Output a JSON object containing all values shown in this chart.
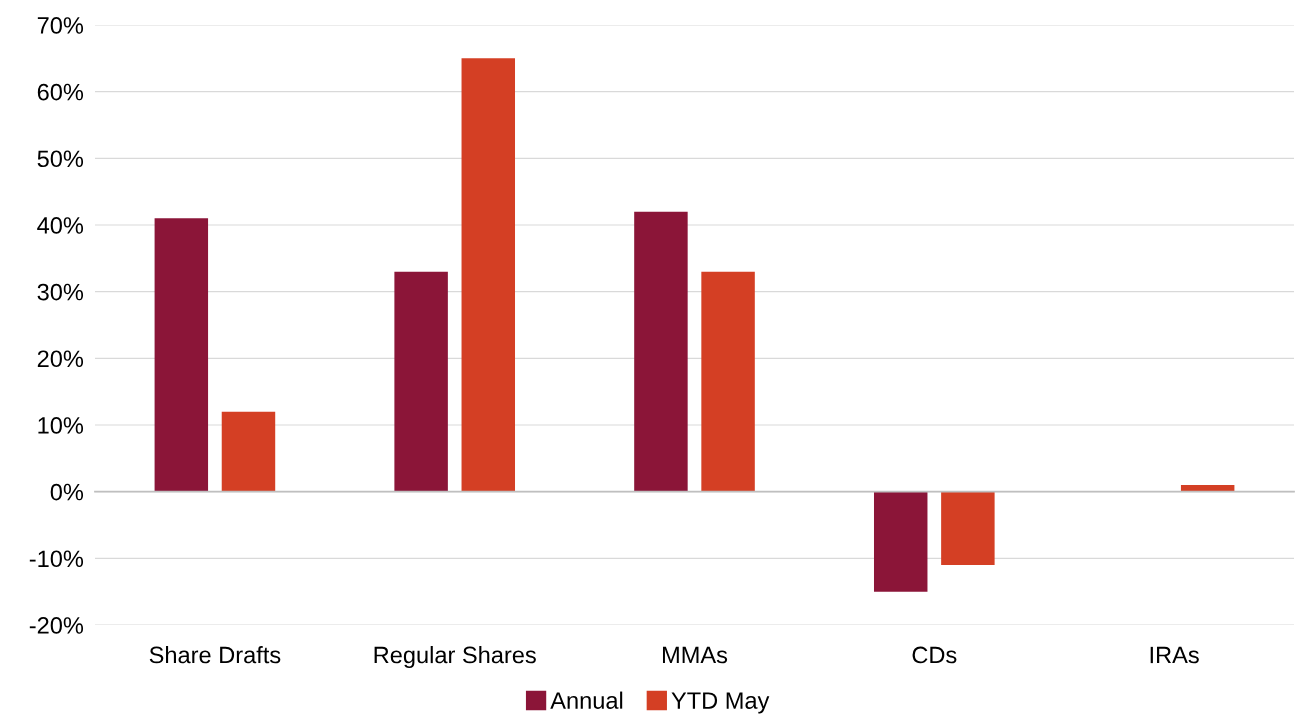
{
  "chart_data": {
    "type": "bar",
    "categories": [
      "Share Drafts",
      "Regular Shares",
      "MMAs",
      "CDs",
      "IRAs"
    ],
    "series": [
      {
        "name": "Annual",
        "color": "#8b1538",
        "values": [
          41,
          33,
          42,
          -15,
          0
        ]
      },
      {
        "name": "YTD May",
        "color": "#d43f24",
        "values": [
          12,
          65,
          33,
          -11,
          1
        ]
      }
    ],
    "ylim": [
      -20,
      70
    ],
    "yticks": [
      {
        "value": -20,
        "label": "-20%"
      },
      {
        "value": -10,
        "label": "-10%"
      },
      {
        "value": 0,
        "label": "0%"
      },
      {
        "value": 10,
        "label": "10%"
      },
      {
        "value": 20,
        "label": "20%"
      },
      {
        "value": 30,
        "label": "30%"
      },
      {
        "value": 40,
        "label": "40%"
      },
      {
        "value": 50,
        "label": "50%"
      },
      {
        "value": 60,
        "label": "60%"
      },
      {
        "value": 70,
        "label": "70%"
      }
    ],
    "grid": "y",
    "legend": "bottom"
  }
}
